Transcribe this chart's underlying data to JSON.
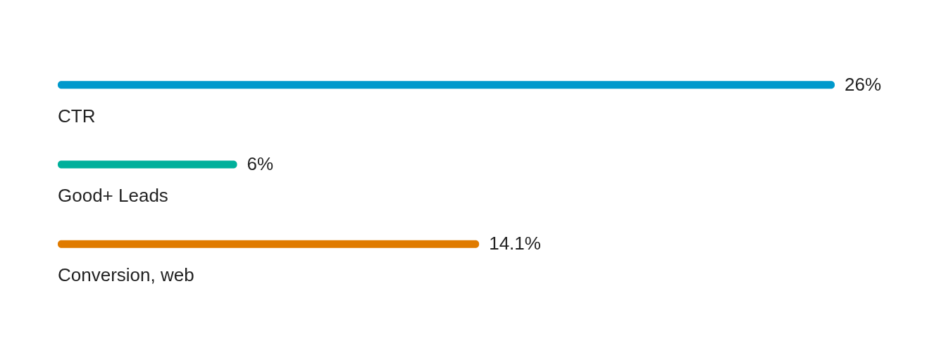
{
  "chart_data": {
    "type": "bar",
    "orientation": "horizontal",
    "categories": [
      "CTR",
      "Good+ Leads",
      "Conversion, web"
    ],
    "values": [
      26,
      6,
      14.1
    ],
    "colors": [
      "#0099cc",
      "#00b09b",
      "#e07b00"
    ],
    "value_labels": [
      "26%",
      "6%",
      "14.1%"
    ],
    "tick_labels": false
  }
}
